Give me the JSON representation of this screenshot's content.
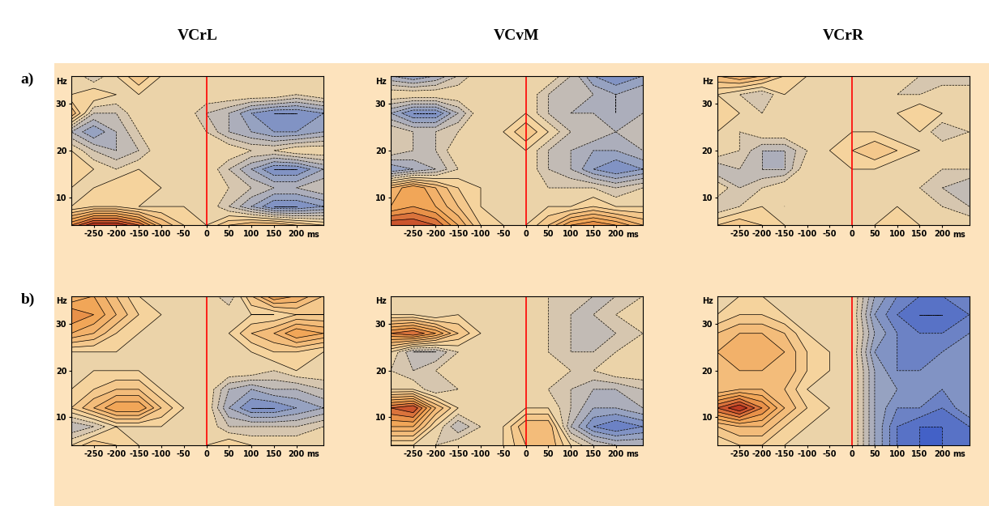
{
  "chart_data": [
    {
      "type": "contour",
      "title": "VCrL",
      "annotations": [
        "a)"
      ],
      "x_label": "ms",
      "y_label": "Hz",
      "x": [
        -300,
        -250,
        -200,
        -150,
        -100,
        -50,
        0,
        50,
        100,
        150,
        200,
        260
      ],
      "y": [
        4,
        8,
        12,
        16,
        20,
        24,
        28,
        32,
        36
      ],
      "cells": [
        [
          0.6,
          0.9,
          0.9,
          0.7,
          0.3,
          0.1,
          0,
          0.2,
          0.3,
          0.3,
          0.2,
          0.1
        ],
        [
          0,
          0.1,
          0.1,
          0,
          0,
          0,
          0,
          -0.2,
          -0.4,
          -0.6,
          -0.6,
          -0.5
        ],
        [
          0,
          0,
          0.1,
          0.1,
          0,
          0,
          0,
          -0.1,
          -0.2,
          -0.3,
          -0.3,
          -0.2
        ],
        [
          0.1,
          0,
          -0.1,
          0,
          0,
          0,
          0,
          -0.2,
          -0.4,
          -0.6,
          -0.6,
          -0.4
        ],
        [
          0,
          -0.2,
          -0.3,
          -0.2,
          0,
          0,
          0,
          0,
          -0.1,
          -0.1,
          0,
          0
        ],
        [
          -0.3,
          -0.5,
          -0.3,
          -0.1,
          0,
          0,
          -0.1,
          -0.3,
          -0.4,
          -0.5,
          -0.5,
          -0.4
        ],
        [
          0.3,
          -0.2,
          -0.2,
          0,
          0,
          0,
          -0.2,
          -0.3,
          -0.5,
          -0.6,
          -0.6,
          -0.5
        ],
        [
          0,
          0.1,
          0,
          0,
          0,
          0,
          0,
          0,
          0,
          0,
          -0.1,
          0
        ],
        [
          0,
          -0.2,
          0,
          0.2,
          0,
          -0.1,
          0,
          0,
          0,
          0,
          0,
          -0.1
        ]
      ],
      "xlim": [
        -300,
        260
      ],
      "ylim": [
        4,
        36
      ],
      "xticks": [
        -250,
        -200,
        -150,
        -100,
        -50,
        0,
        50,
        100,
        150,
        200
      ],
      "yticks": [
        10,
        20,
        30
      ],
      "color_range": [
        -1,
        1
      ],
      "vline": 0
    },
    {
      "type": "contour",
      "title": "VCvM",
      "x_label": "ms",
      "y_label": "Hz",
      "x": [
        -300,
        -250,
        -200,
        -150,
        -100,
        -50,
        0,
        50,
        100,
        150,
        200,
        260
      ],
      "y": [
        4,
        8,
        12,
        16,
        20,
        24,
        28,
        32,
        36
      ],
      "cells": [
        [
          0.8,
          0.8,
          0.7,
          0.4,
          0.1,
          0,
          0,
          0.2,
          0.5,
          0.6,
          0.5,
          0.3
        ],
        [
          0.4,
          0.5,
          0.4,
          0.2,
          0,
          0,
          0,
          0,
          0,
          0.1,
          0,
          0
        ],
        [
          0.3,
          0.5,
          0.3,
          0.1,
          0,
          0,
          0,
          -0.1,
          -0.1,
          -0.1,
          -0.2,
          -0.1
        ],
        [
          -0.5,
          -0.4,
          -0.3,
          -0.1,
          0,
          0,
          0,
          -0.2,
          -0.3,
          -0.5,
          -0.6,
          -0.5
        ],
        [
          -0.1,
          -0.2,
          -0.2,
          0,
          0,
          0,
          0,
          -0.2,
          -0.3,
          -0.4,
          -0.4,
          -0.3
        ],
        [
          -0.1,
          -0.2,
          -0.2,
          -0.1,
          0,
          0,
          0.2,
          0,
          -0.2,
          -0.2,
          -0.3,
          -0.2
        ],
        [
          -0.4,
          -0.6,
          -0.6,
          -0.3,
          0,
          0,
          0,
          -0.2,
          -0.3,
          -0.3,
          -0.4,
          -0.3
        ],
        [
          0,
          0,
          0,
          0,
          0,
          0,
          0,
          -0.2,
          -0.2,
          -0.3,
          -0.4,
          -0.3
        ],
        [
          -0.4,
          -0.5,
          -0.4,
          -0.2,
          0,
          0,
          0,
          0,
          -0.2,
          -0.5,
          -0.6,
          -0.5
        ]
      ],
      "xlim": [
        -300,
        260
      ],
      "ylim": [
        4,
        36
      ],
      "xticks": [
        -250,
        -200,
        -150,
        -100,
        -50,
        0,
        50,
        100,
        150,
        200
      ],
      "yticks": [
        10,
        20,
        30
      ],
      "color_range": [
        -1,
        1
      ],
      "vline": 0
    },
    {
      "type": "contour",
      "title": "VCrR",
      "x_label": "ms",
      "y_label": "Hz",
      "x": [
        -300,
        -250,
        -200,
        -150,
        -100,
        -50,
        0,
        50,
        100,
        150,
        200,
        260
      ],
      "y": [
        4,
        8,
        12,
        16,
        20,
        24,
        28,
        32,
        36
      ],
      "cells": [
        [
          0.1,
          0.2,
          0.1,
          0,
          0,
          0,
          0,
          0,
          0.1,
          0,
          0,
          0
        ],
        [
          -0.2,
          -0.1,
          0,
          -0.1,
          0,
          0,
          0,
          0,
          0,
          0,
          -0.1,
          -0.2
        ],
        [
          0,
          -0.2,
          -0.1,
          0,
          0,
          0,
          0,
          0,
          0,
          -0.1,
          -0.2,
          -0.3
        ],
        [
          -0.3,
          -0.2,
          -0.3,
          -0.3,
          0,
          0,
          0,
          0,
          -0.1,
          0,
          -0.1,
          -0.1
        ],
        [
          0,
          -0.1,
          -0.3,
          -0.3,
          -0.1,
          0,
          0.1,
          0.2,
          0.1,
          0,
          0,
          0
        ],
        [
          0,
          -0.1,
          0,
          0,
          0,
          0,
          0,
          0,
          -0.1,
          0,
          -0.2,
          -0.1
        ],
        [
          0.1,
          0,
          -0.1,
          0,
          0,
          0,
          0,
          0,
          0,
          0.1,
          0,
          0
        ],
        [
          0,
          -0.1,
          -0.2,
          0,
          0,
          0,
          0,
          0,
          -0.1,
          -0.1,
          0,
          0
        ],
        [
          0.3,
          0.4,
          0.3,
          0.1,
          0,
          0,
          0,
          0,
          0,
          -0.1,
          -0.2,
          -0.2
        ]
      ],
      "xlim": [
        -300,
        260
      ],
      "ylim": [
        4,
        36
      ],
      "xticks": [
        -250,
        -200,
        -150,
        -100,
        -50,
        0,
        50,
        100,
        150,
        200
      ],
      "yticks": [
        10,
        20,
        30
      ],
      "color_range": [
        -1,
        1
      ],
      "vline": 0
    },
    {
      "type": "contour",
      "annotations": [
        "b)"
      ],
      "x_label": "ms",
      "y_label": "Hz",
      "x": [
        -300,
        -250,
        -200,
        -150,
        -100,
        -50,
        0,
        50,
        100,
        150,
        200,
        260
      ],
      "y": [
        4,
        8,
        12,
        16,
        20,
        24,
        28,
        32,
        36
      ],
      "cells": [
        [
          0,
          0.2,
          0.1,
          0,
          0,
          0,
          0,
          0.1,
          0,
          0,
          0,
          0
        ],
        [
          -0.3,
          -0.2,
          0,
          0,
          0,
          0,
          0,
          -0.2,
          -0.2,
          -0.2,
          -0.2,
          -0.1
        ],
        [
          0.1,
          0.3,
          0.5,
          0.5,
          0.2,
          0,
          0,
          -0.4,
          -0.6,
          -0.6,
          -0.5,
          -0.4
        ],
        [
          0,
          0.1,
          0.2,
          0.2,
          0,
          0,
          0,
          -0.3,
          -0.4,
          -0.3,
          -0.3,
          -0.2
        ],
        [
          0,
          0,
          0,
          0,
          0,
          0,
          0,
          0,
          0,
          -0.1,
          0,
          0
        ],
        [
          0,
          0,
          0,
          0,
          0,
          0,
          0,
          -0.1,
          0,
          0.1,
          0.1,
          0
        ],
        [
          0.4,
          0.3,
          0.1,
          0,
          0,
          0,
          0,
          0,
          0.2,
          0.3,
          0.5,
          0.4
        ],
        [
          0.6,
          0.5,
          0.3,
          0.1,
          0,
          0,
          0,
          0,
          0,
          0,
          0.1,
          0.1
        ],
        [
          0.3,
          0.4,
          0.2,
          0,
          0,
          0,
          0,
          -0.2,
          0.2,
          0.5,
          0.4,
          0.2
        ]
      ],
      "xlim": [
        -300,
        260
      ],
      "ylim": [
        4,
        36
      ],
      "xticks": [
        -250,
        -200,
        -150,
        -100,
        -50,
        0,
        50,
        100,
        150,
        200
      ],
      "yticks": [
        10,
        20,
        30
      ],
      "color_range": [
        -1,
        1
      ],
      "vline": 0
    },
    {
      "type": "contour",
      "x_label": "ms",
      "y_label": "Hz",
      "x": [
        -300,
        -250,
        -200,
        -150,
        -100,
        -50,
        0,
        50,
        100,
        150,
        200,
        260
      ],
      "y": [
        4,
        8,
        12,
        16,
        20,
        24,
        28,
        32,
        36
      ],
      "cells": [
        [
          0,
          0,
          -0.1,
          0,
          0,
          0,
          0.2,
          0.3,
          0,
          -0.2,
          -0.3,
          -0.3
        ],
        [
          0.4,
          0.4,
          0,
          -0.3,
          -0.1,
          0,
          0.3,
          0.3,
          -0.3,
          -0.6,
          -0.7,
          -0.6
        ],
        [
          0.7,
          0.8,
          0.3,
          0,
          0,
          0,
          0,
          0,
          -0.2,
          -0.4,
          -0.4,
          -0.3
        ],
        [
          0,
          0,
          -0.2,
          -0.1,
          0,
          0,
          0,
          -0.1,
          -0.2,
          -0.3,
          -0.3,
          -0.2
        ],
        [
          -0.1,
          -0.2,
          -0.1,
          0,
          0,
          0,
          0,
          0,
          -0.1,
          -0.1,
          0,
          0
        ],
        [
          0,
          -0.3,
          -0.3,
          -0.1,
          0,
          0,
          0,
          -0.1,
          -0.2,
          -0.2,
          -0.1,
          0
        ],
        [
          0.6,
          0.7,
          0.5,
          0.2,
          0,
          0,
          0,
          -0.1,
          -0.2,
          -0.3,
          -0.2,
          -0.1
        ],
        [
          0,
          0,
          -0.1,
          0,
          0,
          0,
          0,
          -0.1,
          -0.2,
          -0.2,
          -0.1,
          0
        ],
        [
          0,
          0,
          0,
          0,
          0,
          0,
          0,
          -0.1,
          -0.1,
          -0.2,
          -0.2,
          -0.1
        ]
      ],
      "xlim": [
        -300,
        260
      ],
      "ylim": [
        4,
        36
      ],
      "xticks": [
        -250,
        -200,
        -150,
        -100,
        -50,
        0,
        50,
        100,
        150,
        200
      ],
      "yticks": [
        10,
        20,
        30
      ],
      "color_range": [
        -1,
        1
      ],
      "vline": 0
    },
    {
      "type": "contour",
      "x_label": "ms",
      "y_label": "Hz",
      "x": [
        -300,
        -250,
        -200,
        -150,
        -100,
        -50,
        0,
        50,
        100,
        150,
        200,
        260
      ],
      "y": [
        4,
        8,
        12,
        16,
        20,
        24,
        28,
        32,
        36
      ],
      "cells": [
        [
          0,
          0.1,
          0.1,
          0,
          0,
          0,
          0,
          -0.4,
          -0.7,
          -0.8,
          -0.8,
          -0.7
        ],
        [
          0.2,
          0.3,
          0.3,
          0.1,
          0,
          0,
          0,
          -0.4,
          -0.7,
          -0.8,
          -0.8,
          -0.7
        ],
        [
          0.7,
          0.9,
          0.6,
          0.3,
          0.1,
          0,
          0,
          -0.4,
          -0.6,
          -0.6,
          -0.7,
          -0.5
        ],
        [
          0.2,
          0.3,
          0.3,
          0.2,
          0,
          0,
          0,
          -0.4,
          -0.5,
          -0.5,
          -0.6,
          -0.5
        ],
        [
          0.2,
          0.3,
          0.3,
          0.3,
          0.1,
          0,
          0,
          -0.4,
          -0.6,
          -0.6,
          -0.5,
          -0.5
        ],
        [
          0.3,
          0.4,
          0.4,
          0.3,
          0.1,
          0,
          0,
          -0.5,
          -0.6,
          -0.6,
          -0.6,
          -0.5
        ],
        [
          0.2,
          0.3,
          0.3,
          0.2,
          0,
          0,
          0,
          -0.4,
          -0.6,
          -0.7,
          -0.7,
          -0.6
        ],
        [
          0,
          0.1,
          0.1,
          0,
          0,
          0,
          0,
          -0.5,
          -0.7,
          -0.8,
          -0.8,
          -0.7
        ],
        [
          0,
          0,
          0,
          0,
          0,
          0,
          0,
          -0.4,
          -0.6,
          -0.7,
          -0.7,
          -0.6
        ]
      ],
      "xlim": [
        -300,
        260
      ],
      "ylim": [
        4,
        36
      ],
      "xticks": [
        -250,
        -200,
        -150,
        -100,
        -50,
        0,
        50,
        100,
        150,
        200
      ],
      "yticks": [
        10,
        20,
        30
      ],
      "color_range": [
        -1,
        1
      ],
      "vline": 0
    }
  ]
}
